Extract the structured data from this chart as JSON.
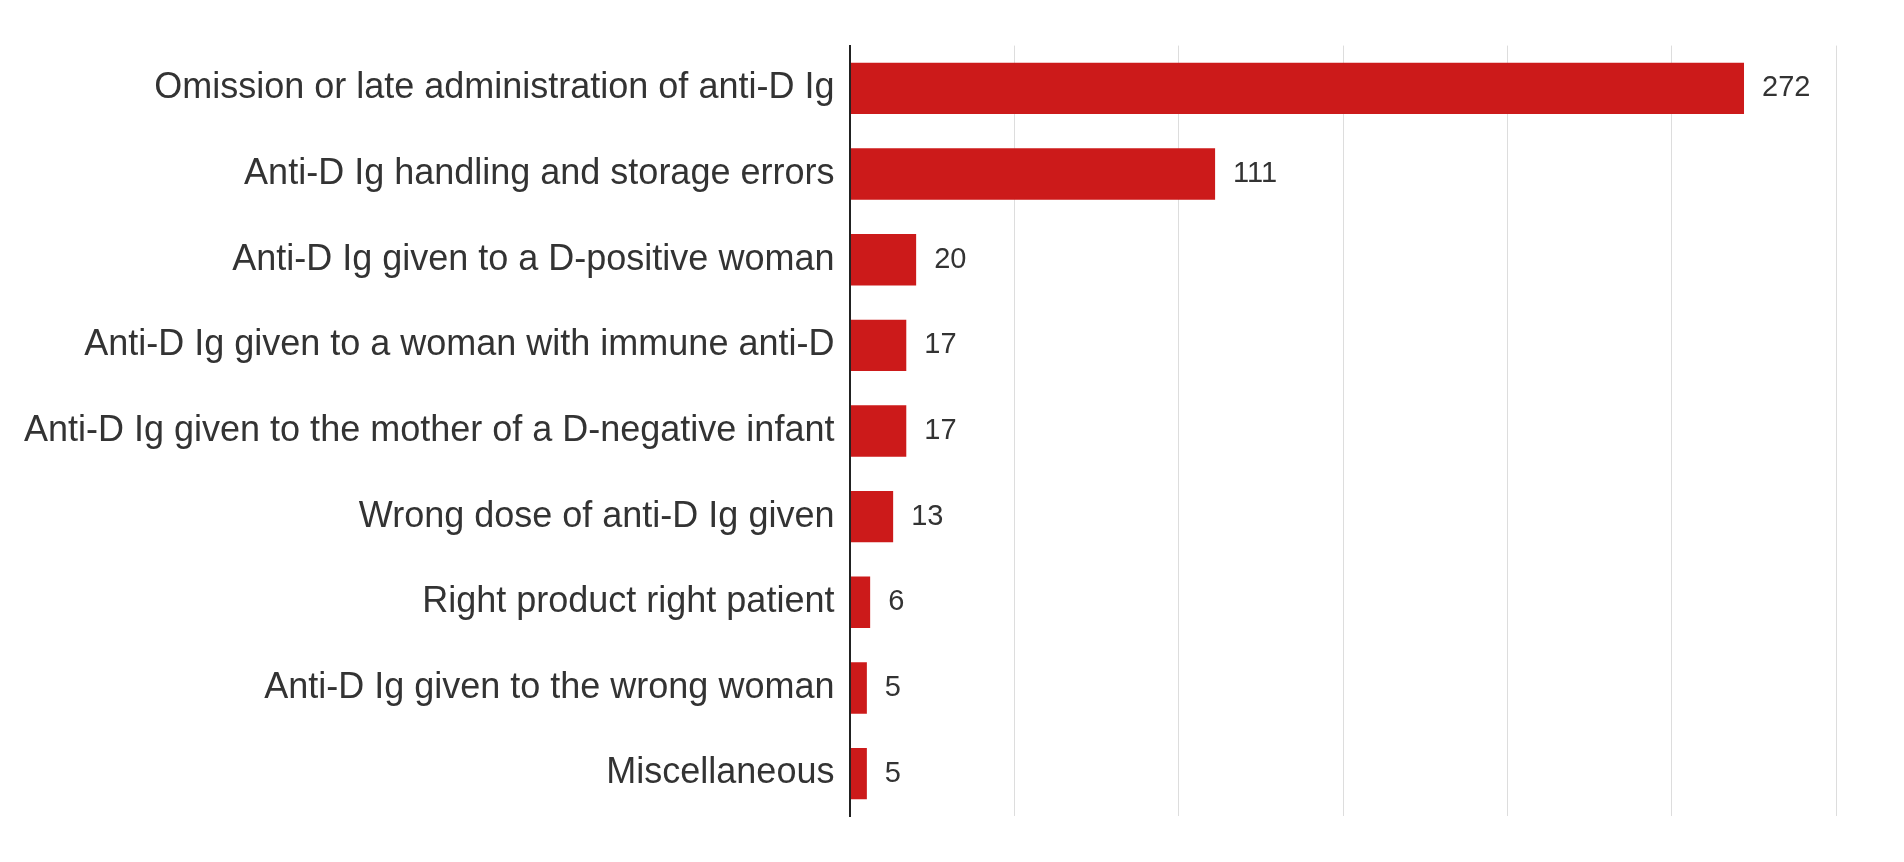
{
  "chart_data": {
    "type": "bar",
    "orientation": "horizontal",
    "categories": [
      "Omission or late administration of anti-D Ig",
      "Anti-D Ig handling and storage errors",
      "Anti-D Ig given to a D-positive woman",
      "Anti-D Ig given to a woman with immune anti-D",
      "Anti-D Ig given to the mother of a D-negative infant",
      "Wrong dose of anti-D Ig given",
      "Right product right patient",
      "Anti-D Ig given to the wrong woman",
      "Miscellaneous"
    ],
    "values": [
      272,
      111,
      20,
      17,
      17,
      13,
      6,
      5,
      5
    ],
    "color": "#cc1a1a",
    "grid": "x",
    "tick_labels": "y",
    "data_labels": true,
    "legend": false
  }
}
